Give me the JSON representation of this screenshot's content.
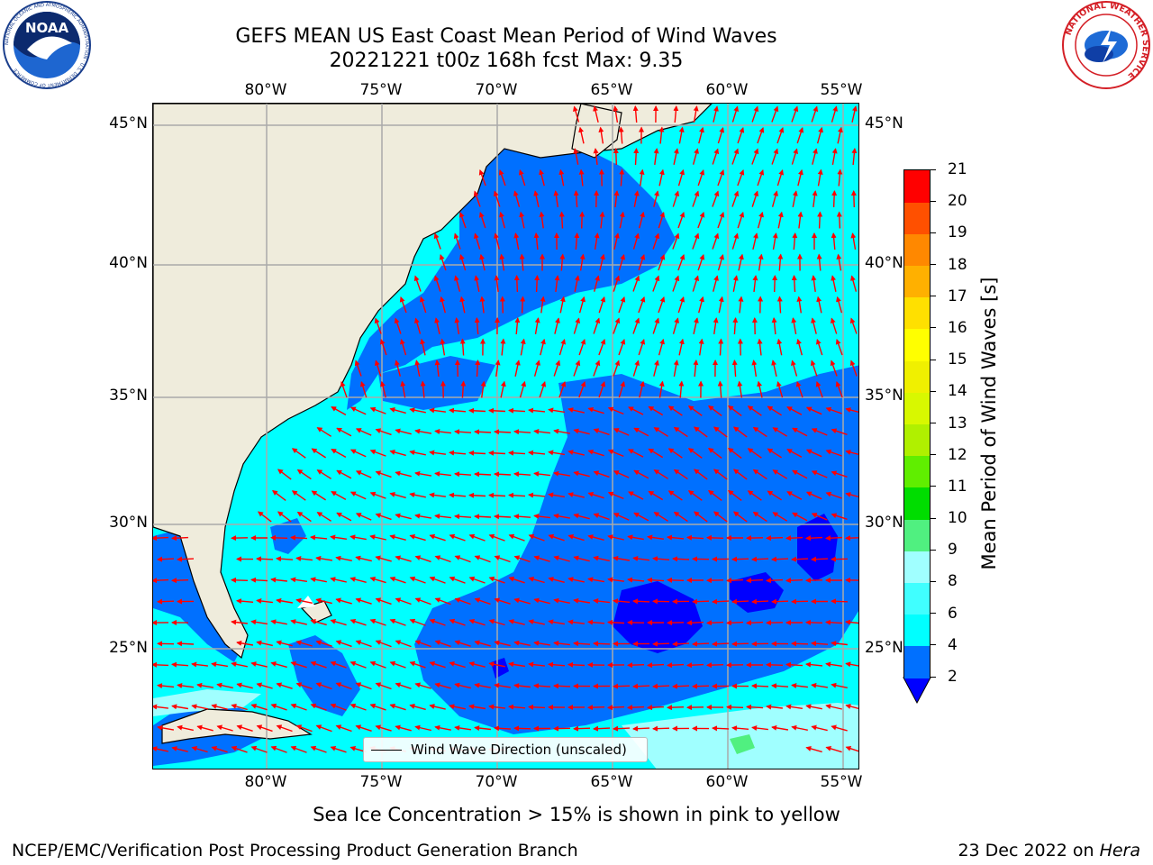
{
  "header": {
    "title_line1": "GEFS MEAN US East Coast Mean Period of Wind Waves",
    "title_line2": "20221221 t00z 168h fcst   Max: 9.35"
  },
  "logos": {
    "noaa_text": "NOAA",
    "noaa_ring": "NATIONAL OCEANIC AND ATMOSPHERIC ADMINISTRATION · U.S. DEPARTMENT OF COMMERCE",
    "nws_ring": "NATIONAL WEATHER SERVICE"
  },
  "map": {
    "lon_labels": [
      "80°W",
      "75°W",
      "70°W",
      "65°W",
      "60°W",
      "55°W"
    ],
    "lat_labels": [
      "45°N",
      "40°N",
      "35°N",
      "30°N",
      "25°N"
    ],
    "land_color": "#efecdc",
    "ocean_color": "#00ffff",
    "arrow_color": "#ff0000"
  },
  "legend": {
    "label": "Wind Wave Direction (unscaled)"
  },
  "colorbar": {
    "label": "Mean Period of Wind Waves [s]",
    "ticks": [
      "2",
      "4",
      "6",
      "8",
      "9",
      "10",
      "11",
      "12",
      "13",
      "14",
      "15",
      "16",
      "17",
      "18",
      "19",
      "20",
      "21"
    ],
    "colors": [
      "#0070ff",
      "#00ffff",
      "#40ffff",
      "#a0ffff",
      "#50f080",
      "#00dd00",
      "#60ee00",
      "#b0f000",
      "#d8f800",
      "#f0f000",
      "#ffff00",
      "#ffe000",
      "#ffb000",
      "#ff8800",
      "#ff5000",
      "#ff0000"
    ],
    "under_color": "#0000ff"
  },
  "footer": {
    "sea_ice_note": "Sea Ice Concentration > 15% is shown in pink to yellow",
    "credit": "NCEP/EMC/Verification Post Processing Product Generation Branch",
    "date": "23 Dec 2022 on ",
    "host": "Hera"
  }
}
